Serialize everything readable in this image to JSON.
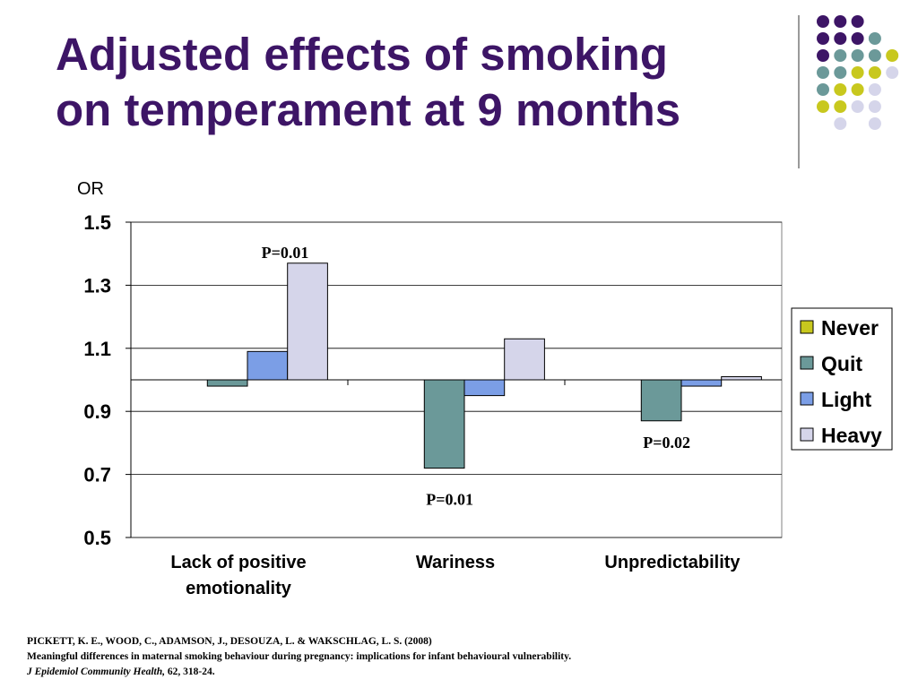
{
  "slide": {
    "title_line1": "Adjusted effects of smoking",
    "title_line2": "on temperament at 9 months"
  },
  "decoration": {
    "dot_colors": {
      "purple": "#3d1566",
      "teal": "#6b9999",
      "yellow": "#c8c81e",
      "lavender": "#d5d5ea"
    }
  },
  "chart_data": {
    "type": "bar",
    "ylabel": "OR",
    "ylim": [
      0.5,
      1.5
    ],
    "yticks": [
      0.5,
      0.7,
      0.9,
      1.1,
      1.3,
      1.5
    ],
    "baseline": 1.0,
    "grid": true,
    "legend_position": "right",
    "categories": [
      "Lack of positive emotionality",
      "Wariness",
      "Unpredictability"
    ],
    "series": [
      {
        "name": "Never",
        "color": "#c8c81e",
        "values": [
          1.0,
          1.0,
          1.0
        ]
      },
      {
        "name": "Quit",
        "color": "#6b9999",
        "values": [
          0.98,
          0.72,
          0.87
        ]
      },
      {
        "name": "Light",
        "color": "#7b9ee6",
        "values": [
          1.09,
          0.95,
          0.98
        ]
      },
      {
        "name": "Heavy",
        "color": "#d5d5ea",
        "values": [
          1.37,
          1.13,
          1.01
        ]
      }
    ],
    "annotations": [
      {
        "text": "P=0.01",
        "category": 0,
        "series": "Heavy"
      },
      {
        "text": "P=0.01",
        "category": 1,
        "series": "Quit"
      },
      {
        "text": "P=0.02",
        "category": 2,
        "series": "Quit"
      }
    ]
  },
  "citation": {
    "authors": "PICKETT, K. E., WOOD, C., ADAMSON, J., DESOUZA, L. & WAKSCHLAG, L. S. (2008)",
    "article": "Meaningful differences in maternal smoking behaviour during pregnancy: implications for infant behavioural vulnerability.",
    "journal": "J Epidemiol Community Health,",
    "volume_pages": " 62, 318-24."
  }
}
